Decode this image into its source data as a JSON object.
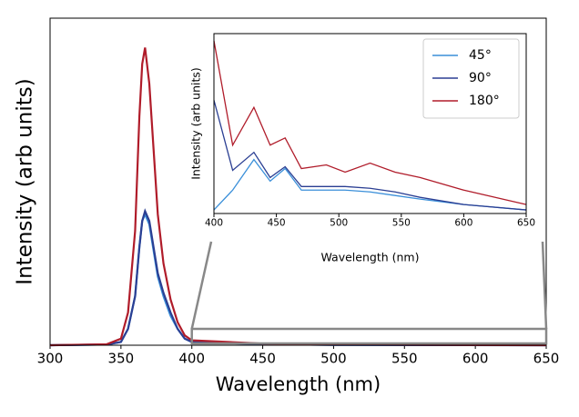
{
  "chart_data": [
    {
      "type": "line",
      "x_label": "Wavelength (nm)",
      "y_label": "Intensity (arb units)",
      "x": [
        300,
        340,
        350,
        355,
        360,
        363,
        365,
        367,
        370,
        373,
        376,
        380,
        385,
        390,
        395,
        400,
        450,
        500,
        650
      ],
      "series": [
        {
          "name": "45°",
          "color": "#3a8fd9",
          "values": [
            0,
            0.2,
            1,
            5,
            15,
            30,
            38,
            40,
            37,
            29,
            21,
            15,
            9,
            5,
            2,
            1,
            0.3,
            0.1,
            0
          ]
        },
        {
          "name": "90°",
          "color": "#2b3f93",
          "values": [
            0,
            0.2,
            1,
            5,
            15,
            30,
            38,
            41,
            38,
            30,
            22,
            16,
            10,
            5,
            2,
            1,
            0.3,
            0.1,
            0
          ]
        },
        {
          "name": "180°",
          "color": "#b01c2a",
          "values": [
            0,
            0.3,
            2,
            10,
            35,
            70,
            86,
            91,
            80,
            60,
            40,
            25,
            14,
            7,
            3,
            1.5,
            0.5,
            0.2,
            0
          ]
        }
      ],
      "xlim": [
        300,
        650
      ],
      "xticks": [
        300,
        350,
        400,
        450,
        500,
        550,
        600,
        650
      ],
      "ylim": [
        0,
        100
      ]
    },
    {
      "type": "line",
      "x_label": "Wavelength (nm)",
      "y_label": "Intensity (arb units)",
      "x": [
        400,
        415,
        432,
        445,
        457,
        470,
        490,
        505,
        525,
        545,
        565,
        600,
        650
      ],
      "series": [
        {
          "name": "45°",
          "color": "#3a8fd9",
          "values": [
            2,
            13,
            30,
            18,
            25,
            13,
            13,
            13,
            12,
            10,
            8,
            5,
            2
          ]
        },
        {
          "name": "90°",
          "color": "#2b3f93",
          "values": [
            63,
            24,
            34,
            20,
            26,
            15,
            15,
            15,
            14,
            12,
            9,
            5,
            2
          ]
        },
        {
          "name": "180°",
          "color": "#b01c2a",
          "values": [
            96,
            38,
            59,
            38,
            42,
            25,
            27,
            23,
            28,
            23,
            20,
            13,
            5
          ]
        }
      ],
      "xlim": [
        400,
        650
      ],
      "xticks": [
        400,
        450,
        500,
        550,
        600,
        650
      ],
      "ylim": [
        0,
        100
      ],
      "legend": "upper right"
    }
  ]
}
